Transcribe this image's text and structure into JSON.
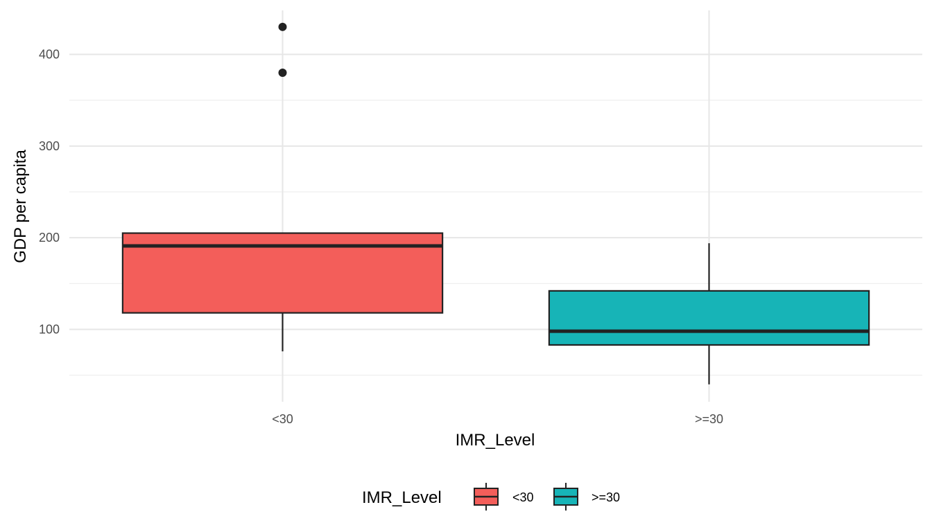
{
  "chart_data": {
    "type": "boxplot",
    "title": "",
    "xlabel": "IMR_Level",
    "ylabel": "GDP per capita",
    "ylim": [
      21,
      448
    ],
    "y_ticks": [
      100,
      200,
      300,
      400
    ],
    "y_minor_ticks": [
      50,
      150,
      250,
      350
    ],
    "grid": true,
    "legend": {
      "title": "IMR_Level",
      "position": "bottom",
      "entries": [
        "<30",
        ">=30"
      ]
    },
    "categories": [
      "<30",
      ">=30"
    ],
    "boxes": [
      {
        "category": "<30",
        "color": "#F35E5A",
        "whisker_low": 76,
        "q1": 118,
        "median": 191,
        "q3": 205,
        "whisker_high": 205,
        "outliers": [
          430,
          380
        ]
      },
      {
        "category": ">=30",
        "color": "#17B4B7",
        "whisker_low": 40,
        "q1": 83,
        "median": 98,
        "q3": 142,
        "whisker_high": 194,
        "outliers": []
      }
    ]
  }
}
